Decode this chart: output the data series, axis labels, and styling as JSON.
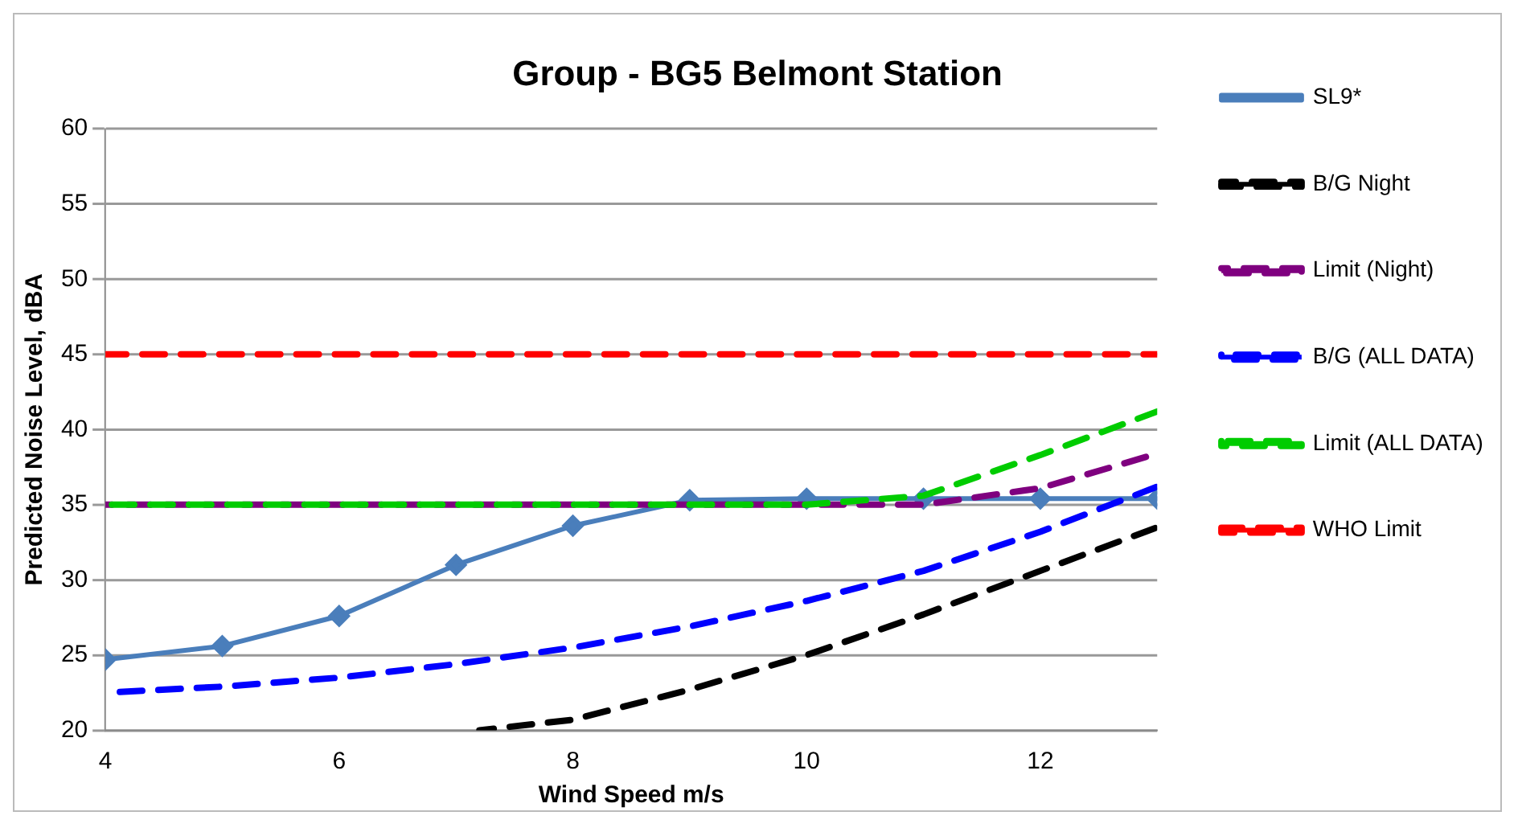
{
  "chart_data": {
    "type": "line",
    "title": "Group - BG5 Belmont Station",
    "xlabel": "Wind Speed m/s",
    "ylabel": "Predicted Noise Level, dBA",
    "x": [
      4,
      5,
      6,
      7,
      8,
      9,
      10,
      11,
      12,
      13
    ],
    "series": [
      {
        "name": "SL9*",
        "color": "#4a7ebb",
        "marker": "diamond",
        "line_style": "solid",
        "values": [
          24.7,
          25.6,
          27.6,
          31.0,
          33.6,
          35.3,
          35.4,
          35.4,
          35.4,
          35.4
        ]
      },
      {
        "name": "B/G Night",
        "color": "#000000",
        "marker": "none",
        "line_style": "dashed",
        "x": [
          7.2,
          8,
          9,
          10,
          11,
          12,
          13
        ],
        "values": [
          20,
          20.7,
          22.7,
          25,
          27.7,
          30.6,
          33.5
        ]
      },
      {
        "name": "Limit (Night)",
        "color": "#7f007f",
        "marker": "none",
        "line_style": "dashed",
        "values": [
          35,
          35,
          35,
          35,
          35,
          35,
          35,
          35,
          36.1,
          38.4
        ]
      },
      {
        "name": "B/G (ALL DATA)",
        "color": "#0000ff",
        "marker": "none",
        "line_style": "dashed",
        "values": [
          22.5,
          22.9,
          23.5,
          24.4,
          25.5,
          26.9,
          28.6,
          30.6,
          33.2,
          36.2
        ]
      },
      {
        "name": "Limit (ALL DATA)",
        "color": "#00cc00",
        "marker": "none",
        "line_style": "dashed",
        "values": [
          35,
          35,
          35,
          35,
          35,
          35,
          35,
          35.6,
          38.3,
          41.2
        ]
      },
      {
        "name": "WHO Limit",
        "color": "#ff0000",
        "marker": "none",
        "line_style": "dashed",
        "values": [
          45,
          45,
          45,
          45,
          45,
          45,
          45,
          45,
          45,
          45
        ]
      }
    ],
    "xlim": [
      4,
      13
    ],
    "xticks": [
      4,
      6,
      8,
      10,
      12
    ],
    "ylim": [
      20,
      60
    ],
    "yticks": [
      20,
      25,
      30,
      35,
      40,
      45,
      50,
      55,
      60
    ],
    "grid": "y",
    "legend": "right"
  }
}
